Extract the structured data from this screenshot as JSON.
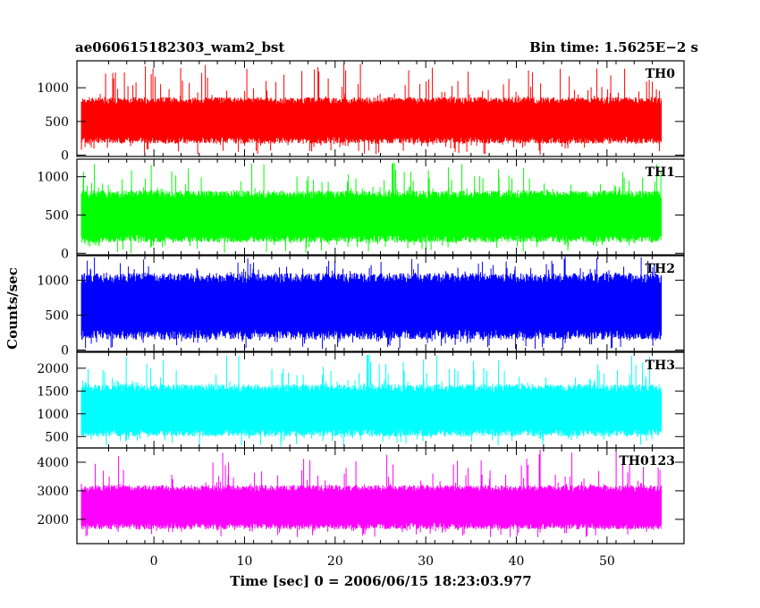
{
  "header": {
    "title": "ae060615182303_wam2_bst",
    "bin_time": "Bin time: 1.5625E−2 s"
  },
  "chart_data": {
    "type": "line",
    "style": "stacked lightcurve panels, shared time axis, no grid",
    "xlabel": "Time [sec] 0 = 2006/06/15 18:23:03.977",
    "ylabel": "Counts/sec",
    "xlim": [
      -8.5,
      58.5
    ],
    "x_data_range": [
      -8.0,
      56.0
    ],
    "xticks": [
      0,
      10,
      20,
      30,
      40,
      50
    ],
    "xtick_labels": [
      "0",
      "10",
      "20",
      "30",
      "40",
      "50"
    ],
    "panels": [
      {
        "name": "TH0",
        "color": "#ff0000",
        "ylim": [
          -20,
          1400
        ],
        "yticks": [
          0,
          500,
          1000
        ],
        "ytick_labels": [
          "0",
          "500",
          "1000"
        ],
        "band_low": 170,
        "band_high": 860,
        "spike_min": 0,
        "spike_max": 1380
      },
      {
        "name": "TH1",
        "color": "#00ff00",
        "ylim": [
          -20,
          1230
        ],
        "yticks": [
          0,
          500,
          1000
        ],
        "ytick_labels": [
          "0",
          "500",
          "1000"
        ],
        "band_low": 140,
        "band_high": 820,
        "spike_min": 0,
        "spike_max": 1180
      },
      {
        "name": "TH2",
        "color": "#0000ff",
        "ylim": [
          -20,
          1350
        ],
        "yticks": [
          0,
          500,
          1000
        ],
        "ytick_labels": [
          "0",
          "500",
          "1000"
        ],
        "band_low": 150,
        "band_high": 1100,
        "spike_min": 0,
        "spike_max": 1340
      },
      {
        "name": "TH3",
        "color": "#00ffff",
        "ylim": [
          250,
          2350
        ],
        "yticks": [
          500,
          1000,
          1500,
          2000
        ],
        "ytick_labels": [
          "500",
          "1000",
          "1500",
          "2000"
        ],
        "band_low": 500,
        "band_high": 1650,
        "spike_min": 280,
        "spike_max": 2300
      },
      {
        "name": "TH0123",
        "color": "#ff00ff",
        "ylim": [
          1150,
          4500
        ],
        "yticks": [
          2000,
          3000,
          4000
        ],
        "ytick_labels": [
          "2000",
          "3000",
          "4000"
        ],
        "band_low": 1650,
        "band_high": 3200,
        "spike_min": 1350,
        "spike_max": 4450
      }
    ]
  }
}
